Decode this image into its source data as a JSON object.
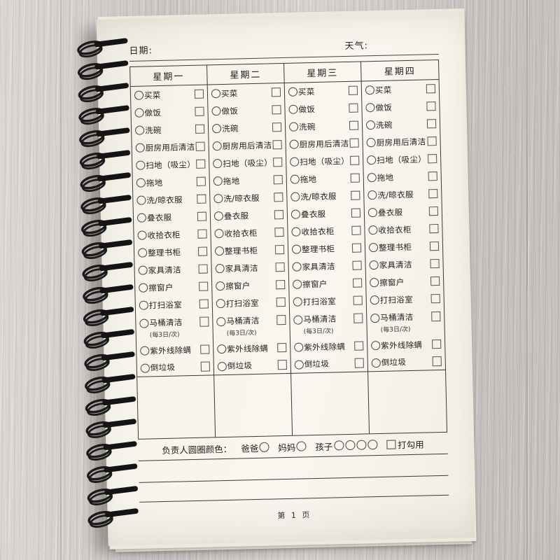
{
  "header": {
    "date_label": "日期:",
    "weather_label": "天气:"
  },
  "table": {
    "day_headers": [
      "星期一",
      "星期二",
      "星期三",
      "星期四"
    ],
    "tasks": [
      {
        "label": "买菜"
      },
      {
        "label": "做饭"
      },
      {
        "label": "洗碗"
      },
      {
        "label": "厨房用后清洁"
      },
      {
        "label": "扫地（吸尘）"
      },
      {
        "label": "拖地"
      },
      {
        "label": "洗/晾衣服"
      },
      {
        "label": "叠衣服"
      },
      {
        "label": "收拾衣柜"
      },
      {
        "label": "整理书柜"
      },
      {
        "label": "家具清洁"
      },
      {
        "label": "擦窗户"
      },
      {
        "label": "打扫浴室"
      },
      {
        "label": "马桶清洁",
        "note": "(每3日/次)"
      },
      {
        "label": "紫外线除螨"
      },
      {
        "label": "倒垃圾"
      }
    ]
  },
  "legend": {
    "title": "负责人圆圈颜色：",
    "dad_label": "爸爸",
    "mom_label": "妈妈",
    "kids_label": "孩子",
    "kid_circle_count": 4,
    "check_label": "打勾用"
  },
  "footer": {
    "page_number": "第 1 页"
  },
  "icons": {
    "task_marker": "circle-outline-icon",
    "task_checkbox": "square-checkbox-icon",
    "binding": "spiral-coil-icon"
  },
  "colors": {
    "page": "#f6f4ea",
    "ink": "#1d1d1d",
    "table_line": "#383838",
    "wood_desk": "#d4cecc",
    "coil": "#1a1a1a"
  },
  "coil_count": 22
}
